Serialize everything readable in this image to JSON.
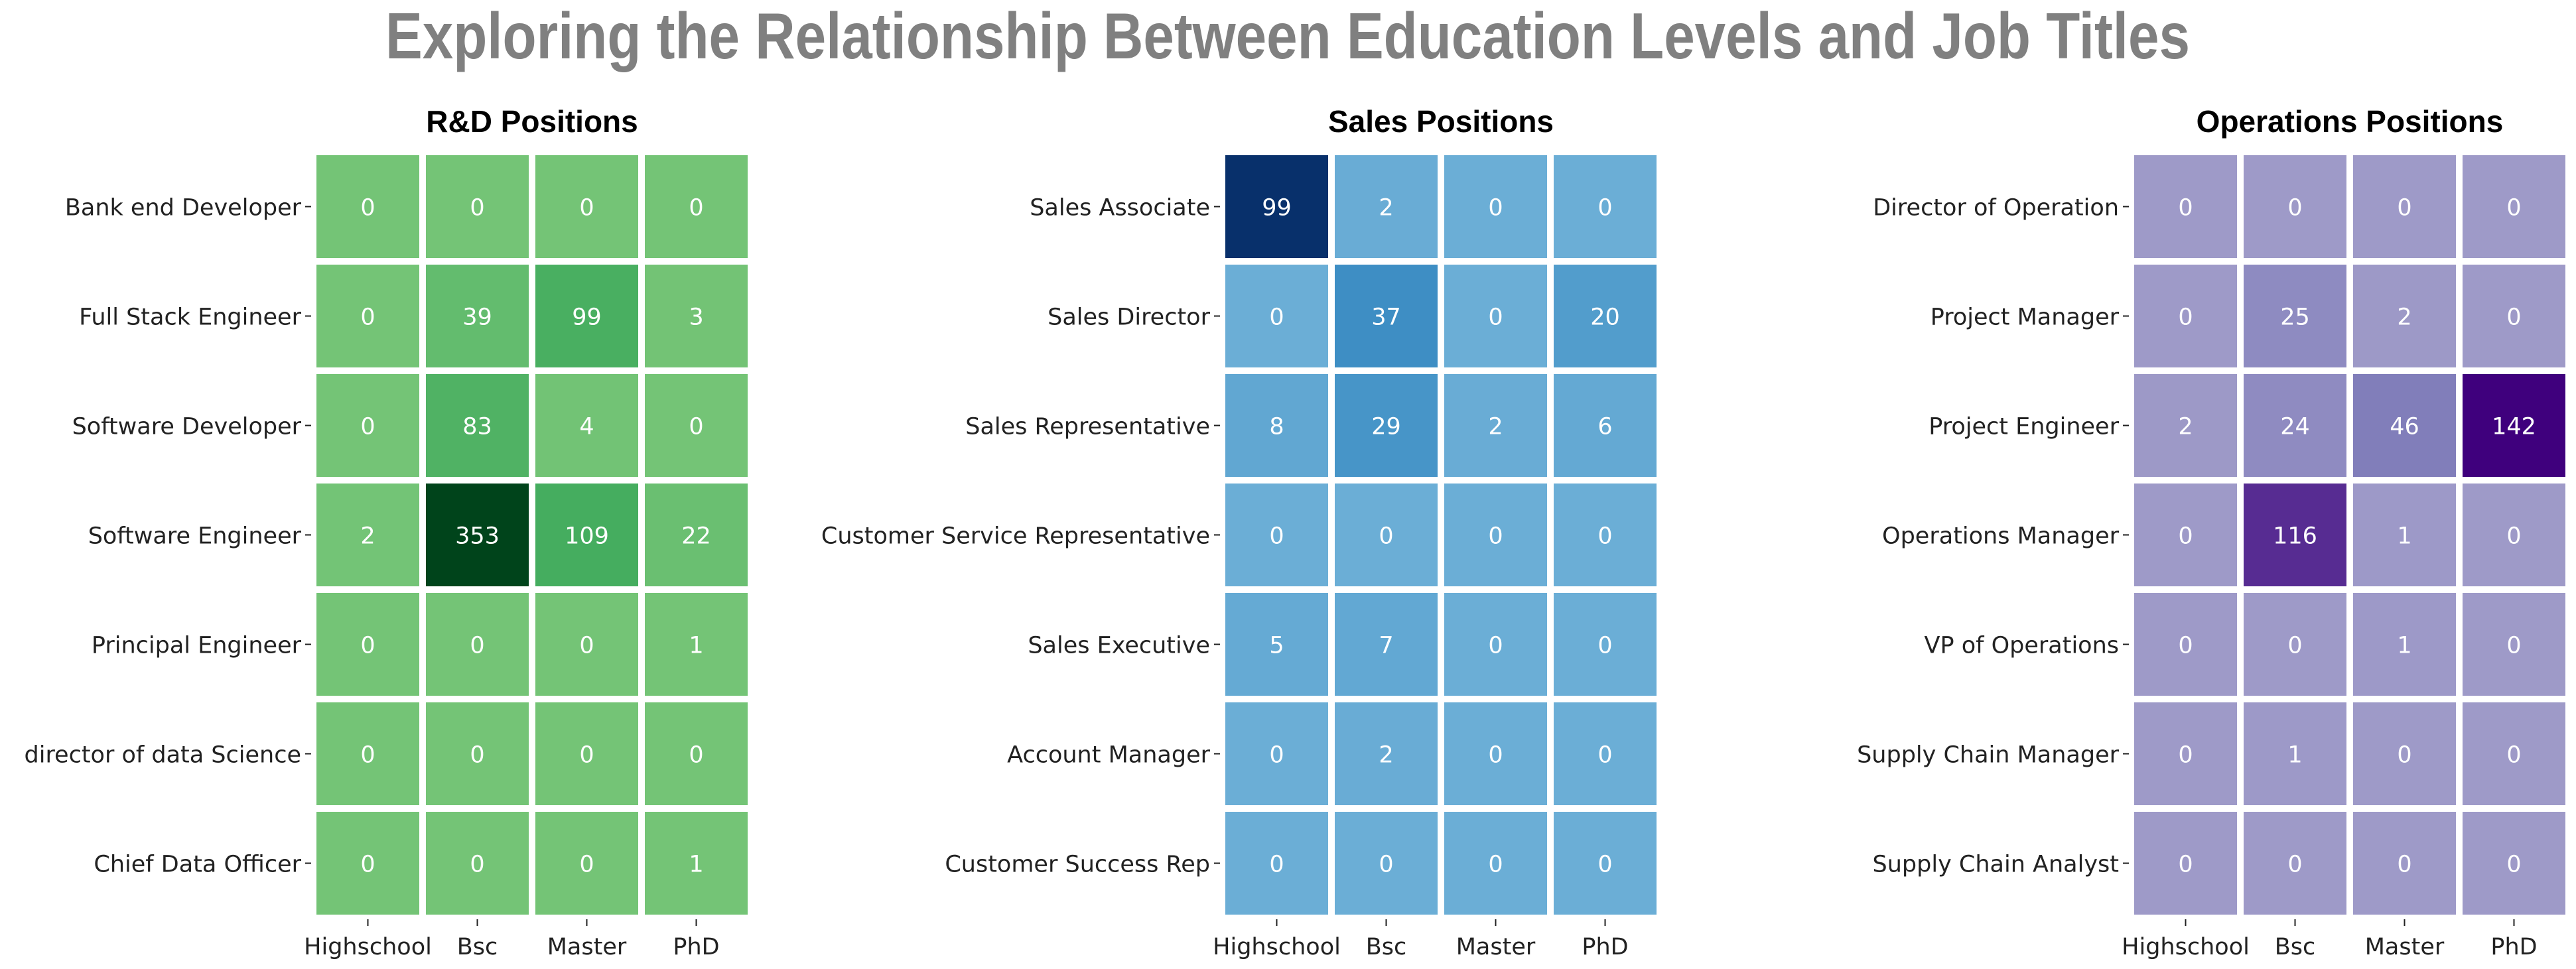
{
  "title": "Exploring the Relationship Between Education Levels and Job Titles",
  "chart_data": [
    {
      "type": "heatmap",
      "title": "R&D Positions",
      "colormap": "Greens",
      "x_categories": [
        "Highschool",
        "Bsc",
        "Master",
        "PhD"
      ],
      "y_categories": [
        "Bank end Developer",
        "Full Stack Engineer",
        "Software Developer",
        "Software Engineer",
        "Principal Engineer",
        "director of data Science",
        "Chief Data Officer"
      ],
      "values": [
        [
          0,
          0,
          0,
          0
        ],
        [
          0,
          39,
          99,
          3
        ],
        [
          0,
          83,
          4,
          0
        ],
        [
          2,
          353,
          109,
          22
        ],
        [
          0,
          0,
          0,
          1
        ],
        [
          0,
          0,
          0,
          0
        ],
        [
          0,
          0,
          0,
          1
        ]
      ]
    },
    {
      "type": "heatmap",
      "title": "Sales Positions",
      "colormap": "Blues",
      "x_categories": [
        "Highschool",
        "Bsc",
        "Master",
        "PhD"
      ],
      "y_categories": [
        "Sales Associate",
        "Sales Director",
        "Sales Representative",
        "Customer Service Representative",
        "Sales Executive",
        "Account Manager",
        "Customer Success Rep"
      ],
      "values": [
        [
          99,
          2,
          0,
          0
        ],
        [
          0,
          37,
          0,
          20
        ],
        [
          8,
          29,
          2,
          6
        ],
        [
          0,
          0,
          0,
          0
        ],
        [
          5,
          7,
          0,
          0
        ],
        [
          0,
          2,
          0,
          0
        ],
        [
          0,
          0,
          0,
          0
        ]
      ]
    },
    {
      "type": "heatmap",
      "title": "Operations Positions",
      "colormap": "Purples",
      "x_categories": [
        "Highschool",
        "Bsc",
        "Master",
        "PhD"
      ],
      "y_categories": [
        "Director of Operation",
        "Project Manager",
        "Project Engineer",
        "Operations Manager",
        "VP of Operations",
        "Supply Chain Manager",
        "Supply Chain Analyst"
      ],
      "values": [
        [
          0,
          0,
          0,
          0
        ],
        [
          0,
          25,
          2,
          0
        ],
        [
          2,
          24,
          46,
          142
        ],
        [
          0,
          116,
          1,
          0
        ],
        [
          0,
          0,
          1,
          0
        ],
        [
          0,
          1,
          0,
          0
        ],
        [
          0,
          0,
          0,
          0
        ]
      ]
    }
  ],
  "colors": {
    "title": "#808080",
    "greens": [
      "#74c476",
      "#41ab5d",
      "#238b45",
      "#00441b"
    ],
    "blues": [
      "#6baed6",
      "#4292c6",
      "#2171b5",
      "#08306b"
    ],
    "purples": [
      "#9e9ac8",
      "#807dba",
      "#6a51a3",
      "#3f007d"
    ]
  }
}
